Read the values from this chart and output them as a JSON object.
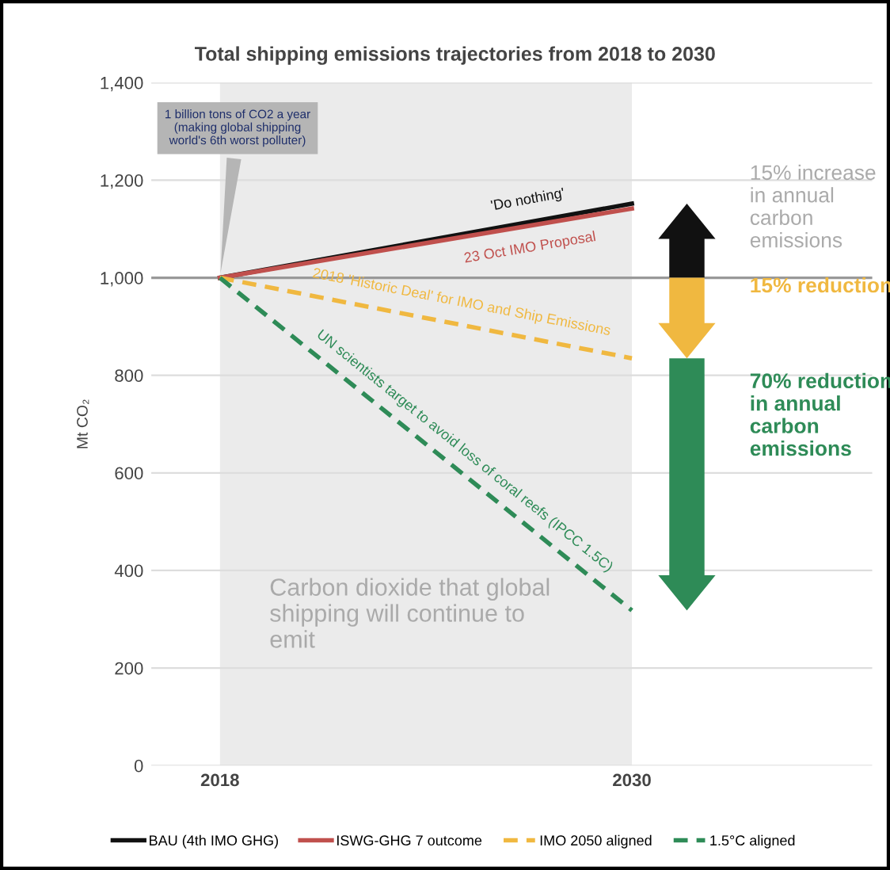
{
  "chart_data": {
    "type": "line",
    "title": "Total shipping emissions trajectories from 2018 to 2030",
    "ylabel": "Mt CO₂",
    "x": [
      2018,
      2030
    ],
    "series": [
      {
        "name": "BAU (4th IMO GHG)",
        "color": "#111111",
        "values": [
          1000,
          1152
        ],
        "line_style": "solid"
      },
      {
        "name": "ISWG-GHG 7 outcome",
        "color": "#c0504d",
        "values": [
          1000,
          1142
        ],
        "line_style": "solid"
      },
      {
        "name": "IMO 2050 aligned",
        "color": "#f0b840",
        "values": [
          1000,
          835
        ],
        "line_style": "dashed"
      },
      {
        "name": "1.5°C aligned",
        "color": "#2e8b57",
        "values": [
          1000,
          318
        ],
        "line_style": "dashed"
      }
    ],
    "xlim": [
      2016,
      2037
    ],
    "xticks": [
      2018,
      2030
    ],
    "ylim": [
      0,
      1400
    ],
    "yticks": [
      0,
      200,
      400,
      600,
      800,
      {
        "value": 1000,
        "label": "1,000"
      },
      {
        "value": 1200,
        "label": "1,200"
      },
      {
        "value": 1400,
        "label": "1,400"
      }
    ],
    "grid": "y",
    "legend": "bottom",
    "ref_lines": [
      {
        "axis": "y",
        "value": 1000,
        "color": "#999999"
      }
    ],
    "bands": [
      {
        "axis": "x",
        "from": 2018,
        "to": 2030,
        "label": "Carbon dioxide that global shipping will continue to emit",
        "color": "#ebebeb"
      }
    ],
    "annotations": [
      {
        "text": "1 billion tons of CO2 a year (making global shipping world's 6th worst polluter)",
        "x": 2018,
        "y": 1000
      },
      {
        "text": "'Do nothing'",
        "x": 2027,
        "y": 1114
      },
      {
        "text": "23 Oct IMO Proposal",
        "x": 2027,
        "y": 1106
      },
      {
        "text": "2018 'Historic Deal' for IMO and Ship Emissions",
        "x": 2025,
        "y": 904
      },
      {
        "text": "UN scientists target to avoid loss of coral reefs (IPCC 1.5C)",
        "x": 2025,
        "y": 602
      },
      "15% increase in annual carbon emissions",
      "15% reduction",
      "70% reduction in annual carbon emissions"
    ]
  }
}
